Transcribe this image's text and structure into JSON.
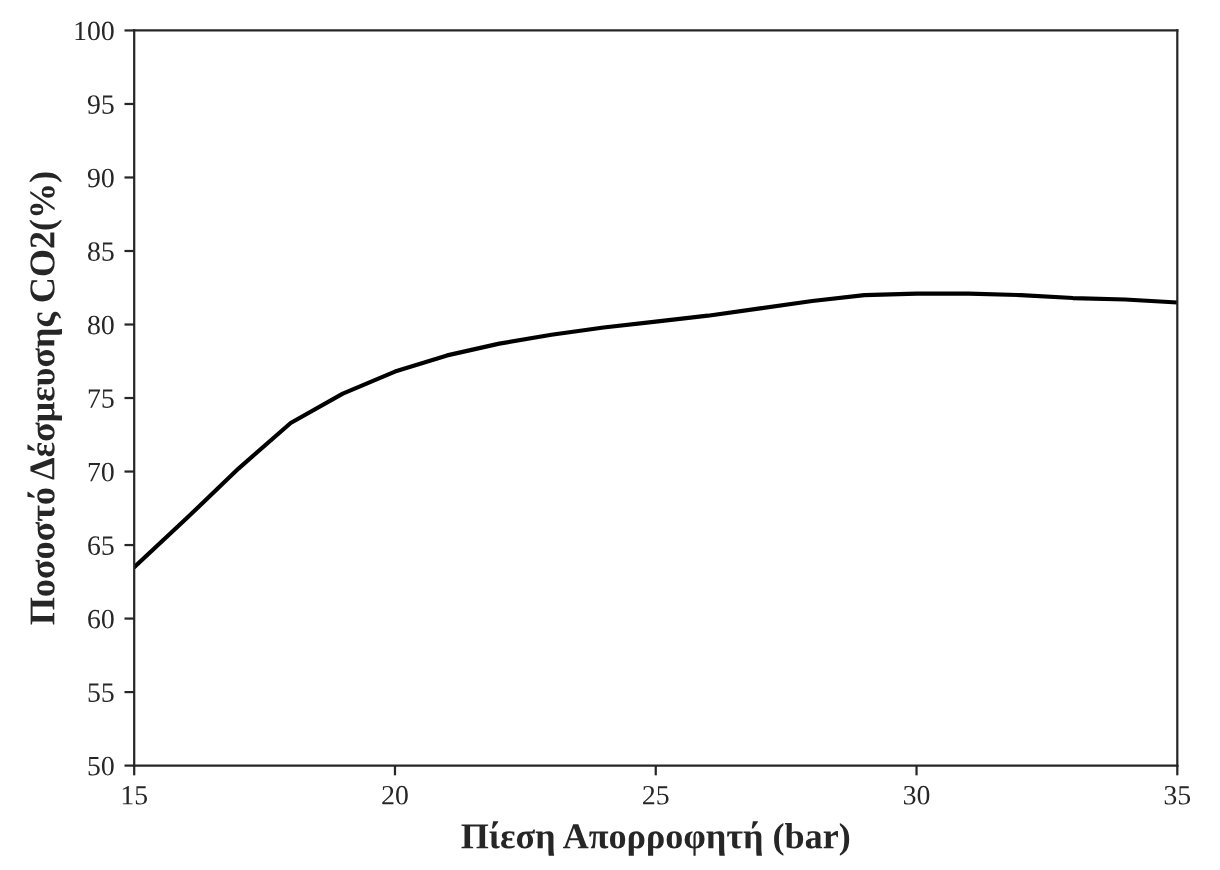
{
  "chart_data": {
    "type": "line",
    "xlabel": "Πίεση Απορροφητή (bar)",
    "ylabel": "Ποσοστό Δέσμευσης CO2(%)",
    "x": [
      15,
      16,
      17,
      18,
      19,
      20,
      21,
      22,
      23,
      24,
      25,
      26,
      27,
      28,
      29,
      30,
      31,
      32,
      33,
      34,
      35
    ],
    "series": [
      {
        "color": "#000000",
        "values": [
          63.5,
          66.8,
          70.2,
          73.3,
          75.3,
          76.8,
          77.9,
          78.7,
          79.3,
          79.8,
          80.2,
          80.6,
          81.1,
          81.6,
          82.0,
          82.1,
          82.1,
          82.0,
          81.8,
          81.7,
          81.5
        ]
      }
    ],
    "xlim": [
      15,
      35
    ],
    "xticks": [
      15,
      20,
      25,
      30,
      35
    ],
    "ylim": [
      50,
      100
    ],
    "yticks": [
      50,
      55,
      60,
      65,
      70,
      75,
      80,
      85,
      90,
      95,
      100
    ],
    "grid": false,
    "marker": "none",
    "line_style": "solid"
  }
}
